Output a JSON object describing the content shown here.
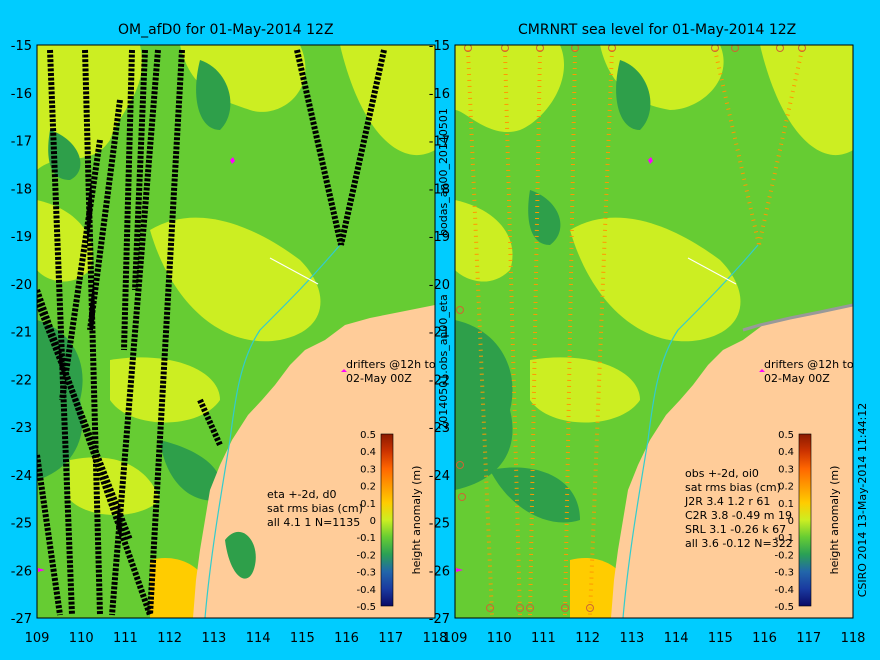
{
  "left_panel": {
    "title": "OM_afD0 for 01-May-2014 12Z",
    "drifter_note_1": "drifters @12h to",
    "drifter_note_2": "02-May 00Z",
    "stats": [
      "eta +-2d, d0",
      "sat rms bias (cm)",
      "all 4.1 1 N=1135"
    ],
    "colorbar_label": "height anomaly (m)"
  },
  "right_panel": {
    "title": "CMRNRT sea level  for 01-May-2014 12Z",
    "drifter_note_1": "drifters @12h to",
    "drifter_note_2": "02-May 00Z",
    "stats": [
      "obs +-2d, oi0",
      "sat rms bias (cm)",
      "J2R   3.4  1.2  r 61",
      "C2R   3.8 -0.49  m 19",
      "SRL   3.1 -0.26  k 67",
      "all   3.6 -0.12  N=322"
    ],
    "colorbar_label": "height anomaly (m)"
  },
  "side_labels": {
    "left_top": "bodas_an00_20140501",
    "left_bottom": "20140501.obs_an00_eta",
    "right": "CSIRO 2014  13-May-2014 11:44:12"
  },
  "axes": {
    "lat_labels": [
      "-15",
      "-16",
      "-17",
      "-18",
      "-19",
      "-20",
      "-21",
      "-22",
      "-23",
      "-24",
      "-25",
      "-26",
      "-27"
    ],
    "lon_labels": [
      "109",
      "110",
      "111",
      "112",
      "113",
      "114",
      "115",
      "116",
      "117",
      "118"
    ]
  },
  "colorbar": {
    "ticks": [
      "0.5",
      "0.4",
      "0.3",
      "0.2",
      "0.1",
      "0",
      "-0.1",
      "-0.2",
      "-0.3",
      "-0.4",
      "-0.5"
    ],
    "colors": [
      "#8b1a00",
      "#cc3300",
      "#ff6600",
      "#ff9900",
      "#ffcc00",
      "#ccee22",
      "#66cc33",
      "#2aa055",
      "#2266aa",
      "#1a3aa0",
      "#0a0a66"
    ]
  },
  "colors": {
    "background": "#00ccff",
    "land": "#ffcc99",
    "sea_base": "#66cc33",
    "sea_high": "#ccee22",
    "sea_low": "#2e9f4a",
    "drifter": "#ff00ff"
  }
}
